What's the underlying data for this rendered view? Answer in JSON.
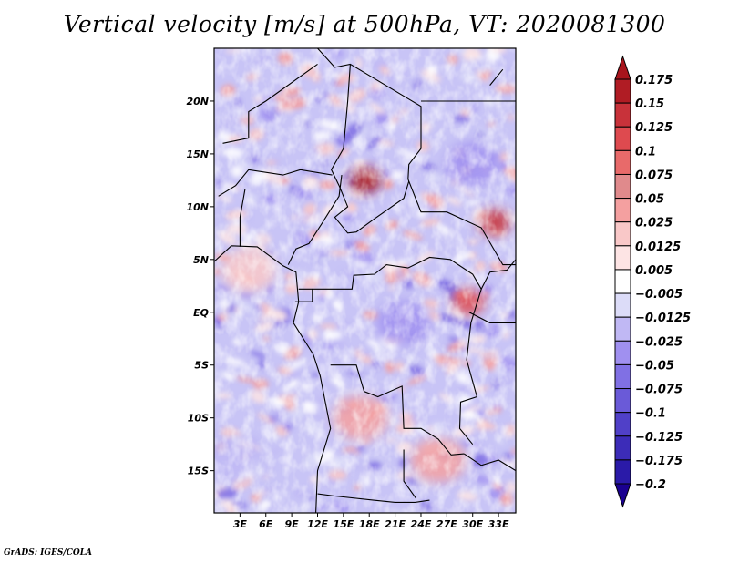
{
  "title": "Vertical velocity [m/s] at 500hPa, VT: 2020081300",
  "footer": "GrADS: IGES/COLA",
  "map": {
    "lon_range": [
      0,
      35
    ],
    "lat_range": [
      -19,
      25
    ],
    "lat_ticks": [
      {
        "value": 20,
        "label": "20N"
      },
      {
        "value": 15,
        "label": "15N"
      },
      {
        "value": 10,
        "label": "10N"
      },
      {
        "value": 5,
        "label": "5N"
      },
      {
        "value": 0,
        "label": "EQ"
      },
      {
        "value": -5,
        "label": "5S"
      },
      {
        "value": -10,
        "label": "10S"
      },
      {
        "value": -15,
        "label": "15S"
      }
    ],
    "lon_ticks": [
      {
        "value": 3,
        "label": "3E"
      },
      {
        "value": 6,
        "label": "6E"
      },
      {
        "value": 9,
        "label": "9E"
      },
      {
        "value": 12,
        "label": "12E"
      },
      {
        "value": 15,
        "label": "15E"
      },
      {
        "value": 18,
        "label": "18E"
      },
      {
        "value": 21,
        "label": "21E"
      },
      {
        "value": 24,
        "label": "24E"
      },
      {
        "value": 27,
        "label": "27E"
      },
      {
        "value": 30,
        "label": "30E"
      },
      {
        "value": 33,
        "label": "33E"
      }
    ],
    "features": [
      {
        "name": "strong-ascent-lake-chad-region",
        "lon": 17.5,
        "lat": 12.5,
        "value": 0.175
      },
      {
        "name": "ascent-ethiopian-highlands",
        "lon": 32.5,
        "lat": 8.5,
        "value": 0.125
      },
      {
        "name": "ascent-east-congo-rift",
        "lon": 29.5,
        "lat": 1.0,
        "value": 0.1
      },
      {
        "name": "descent-sudan",
        "lon": 30.0,
        "lat": 14.0,
        "value": -0.05
      },
      {
        "name": "descent-congo-basin",
        "lon": 22.0,
        "lat": -1.0,
        "value": -0.05
      },
      {
        "name": "weak-ascent-angola",
        "lon": 17.0,
        "lat": -10.0,
        "value": 0.025
      },
      {
        "name": "weak-ascent-zambia",
        "lon": 26.0,
        "lat": -14.0,
        "value": 0.025
      },
      {
        "name": "weak-ascent-gulf-of-guinea",
        "lon": 4.0,
        "lat": 4.0,
        "value": 0.0125
      },
      {
        "name": "descent-south-atlantic",
        "lon": 2.0,
        "lat": -14.0,
        "value": -0.025
      }
    ]
  },
  "colorbar": {
    "levels": [
      "0.175",
      "0.15",
      "0.125",
      "0.1",
      "0.075",
      "0.05",
      "0.025",
      "0.0125",
      "0.005",
      "-0.005",
      "-0.0125",
      "-0.025",
      "-0.05",
      "-0.075",
      "-0.1",
      "-0.125",
      "-0.175",
      "-0.2"
    ],
    "colors": [
      "#b01c24",
      "#c8323a",
      "#de4a4f",
      "#e86a6a",
      "#e08a8c",
      "#f4a0a0",
      "#f9c8c8",
      "#fde4e4",
      "#ffffff",
      "#dcdcf8",
      "#c0b8f4",
      "#a090f0",
      "#8070e4",
      "#6a5ad8",
      "#5040c8",
      "#3c2cb8",
      "#2a1aa8",
      "#1e0e96"
    ],
    "top_arrow_color": "#a8141c",
    "bottom_arrow_color": "#1a0090"
  }
}
